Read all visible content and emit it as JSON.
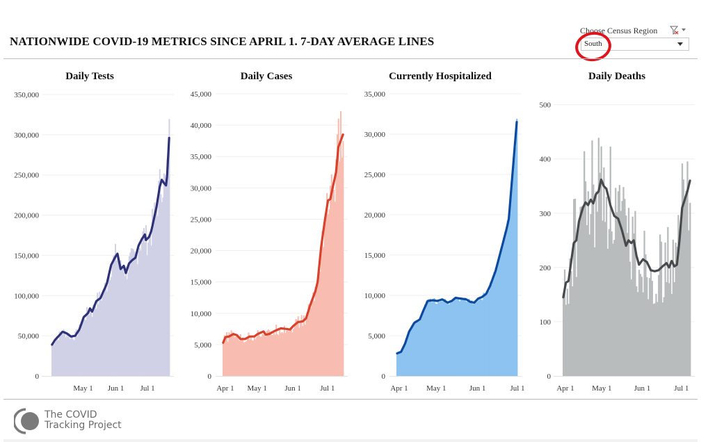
{
  "header": {
    "title": "NATIONWIDE COVID-19 METRICS SINCE APRIL 1. 7-DAY AVERAGE LINES"
  },
  "filter": {
    "label": "Choose Census Region",
    "selected": "South",
    "icon": "clear-filter-icon"
  },
  "footer": {
    "line1": "The COVID",
    "line2": "Tracking Project",
    "logo": "covid-tracking-logo"
  },
  "chart_data": [
    {
      "type": "bar",
      "title": "Daily Tests",
      "xlabel": "",
      "ylabel": "",
      "x_start": "Apr 1",
      "days": 111,
      "x_ticks": [
        {
          "label": "May 1",
          "day": 30
        },
        {
          "label": "Jun 1",
          "day": 61
        },
        {
          "label": "Jul 1",
          "day": 91
        }
      ],
      "y_ticks": [
        0,
        50000,
        100000,
        150000,
        200000,
        250000,
        300000,
        350000
      ],
      "y_tick_labels": [
        "0",
        "50,000",
        "100,000",
        "150,000",
        "200,000",
        "250,000",
        "300,000",
        "350,000"
      ],
      "ylim": [
        0,
        350000
      ],
      "grid": true,
      "bar_color": "#d0d1e6",
      "line_color": "#2e3178",
      "avg_keypoints": [
        [
          0,
          39000
        ],
        [
          3,
          45000
        ],
        [
          10,
          55000
        ],
        [
          14,
          53000
        ],
        [
          18,
          49000
        ],
        [
          22,
          50000
        ],
        [
          26,
          58000
        ],
        [
          30,
          73000
        ],
        [
          34,
          78000
        ],
        [
          36,
          84000
        ],
        [
          38,
          80000
        ],
        [
          42,
          93000
        ],
        [
          46,
          97000
        ],
        [
          52,
          115000
        ],
        [
          56,
          138000
        ],
        [
          60,
          148000
        ],
        [
          62,
          152000
        ],
        [
          65,
          133000
        ],
        [
          68,
          137000
        ],
        [
          70,
          128000
        ],
        [
          73,
          140000
        ],
        [
          76,
          144000
        ],
        [
          79,
          147000
        ],
        [
          82,
          162000
        ],
        [
          85,
          170000
        ],
        [
          88,
          176000
        ],
        [
          89,
          169000
        ],
        [
          92,
          173000
        ],
        [
          94,
          180000
        ],
        [
          96,
          192000
        ],
        [
          99,
          210000
        ],
        [
          102,
          235000
        ],
        [
          104,
          244000
        ],
        [
          106,
          240000
        ],
        [
          108,
          237000
        ],
        [
          109,
          248000
        ],
        [
          111,
          296000
        ]
      ],
      "daily_noise": 0.12
    },
    {
      "type": "bar",
      "title": "Daily Cases",
      "xlabel": "",
      "ylabel": "",
      "x_start": "Apr 1",
      "days": 111,
      "x_ticks": [
        {
          "label": "Apr 1",
          "day": 0
        },
        {
          "label": "May 1",
          "day": 30
        },
        {
          "label": "Jun 1",
          "day": 61
        },
        {
          "label": "Jul 1",
          "day": 91
        }
      ],
      "y_ticks": [
        0,
        5000,
        10000,
        15000,
        20000,
        25000,
        30000,
        35000,
        40000,
        45000
      ],
      "y_tick_labels": [
        "0",
        "5,000",
        "10,000",
        "15,000",
        "20,000",
        "25,000",
        "30,000",
        "35,000",
        "40,000",
        "45,000"
      ],
      "ylim": [
        0,
        45000
      ],
      "grid": true,
      "bar_color": "#f9bcb0",
      "line_color": "#d9412b",
      "avg_keypoints": [
        [
          0,
          5300
        ],
        [
          2,
          6200
        ],
        [
          5,
          6300
        ],
        [
          9,
          6700
        ],
        [
          12,
          6500
        ],
        [
          15,
          5900
        ],
        [
          19,
          5900
        ],
        [
          23,
          6300
        ],
        [
          27,
          6300
        ],
        [
          30,
          6700
        ],
        [
          35,
          7100
        ],
        [
          37,
          6600
        ],
        [
          40,
          6700
        ],
        [
          45,
          7200
        ],
        [
          50,
          7600
        ],
        [
          55,
          7500
        ],
        [
          58,
          7400
        ],
        [
          61,
          8000
        ],
        [
          65,
          8600
        ],
        [
          69,
          8700
        ],
        [
          72,
          9200
        ],
        [
          75,
          11000
        ],
        [
          80,
          13500
        ],
        [
          82,
          15000
        ],
        [
          85,
          20500
        ],
        [
          88,
          24500
        ],
        [
          91,
          28000
        ],
        [
          93,
          28200
        ],
        [
          95,
          30000
        ],
        [
          98,
          32500
        ],
        [
          100,
          36500
        ],
        [
          102,
          37500
        ],
        [
          104,
          38500
        ]
      ],
      "daily_noise": 0.13
    },
    {
      "type": "bar",
      "title": "Currently Hospitalized",
      "xlabel": "",
      "ylabel": "",
      "x_start": "Apr 1",
      "days": 111,
      "x_ticks": [
        {
          "label": "Apr 1",
          "day": 0
        },
        {
          "label": "May 1",
          "day": 30
        },
        {
          "label": "Jun 1",
          "day": 61
        },
        {
          "label": "Jul 1",
          "day": 91
        }
      ],
      "y_ticks": [
        0,
        5000,
        10000,
        15000,
        20000,
        25000,
        30000,
        35000
      ],
      "y_tick_labels": [
        "0",
        "5,000",
        "10,000",
        "15,000",
        "20,000",
        "25,000",
        "30,000",
        "35,000"
      ],
      "ylim": [
        0,
        35000
      ],
      "grid": true,
      "bar_color": "#8cc3f0",
      "line_color": "#0b4a9e",
      "avg_keypoints": [
        [
          0,
          2800
        ],
        [
          3,
          3000
        ],
        [
          6,
          4000
        ],
        [
          9,
          5500
        ],
        [
          13,
          6600
        ],
        [
          17,
          7000
        ],
        [
          20,
          8200
        ],
        [
          23,
          9300
        ],
        [
          27,
          9400
        ],
        [
          30,
          9300
        ],
        [
          34,
          9500
        ],
        [
          38,
          9100
        ],
        [
          41,
          9300
        ],
        [
          44,
          9700
        ],
        [
          48,
          9600
        ],
        [
          52,
          9500
        ],
        [
          55,
          9200
        ],
        [
          58,
          9100
        ],
        [
          61,
          9600
        ],
        [
          64,
          9800
        ],
        [
          67,
          10200
        ],
        [
          70,
          11200
        ],
        [
          74,
          13000
        ],
        [
          78,
          15500
        ],
        [
          82,
          18000
        ],
        [
          84,
          19500
        ],
        [
          86,
          23500
        ],
        [
          88,
          27500
        ],
        [
          90,
          31500
        ]
      ],
      "daily_noise": 0.04
    },
    {
      "type": "bar",
      "title": "Daily Deaths",
      "xlabel": "",
      "ylabel": "",
      "x_start": "Apr 1",
      "days": 111,
      "x_ticks": [
        {
          "label": "Apr 1",
          "day": 0
        },
        {
          "label": "May 1",
          "day": 30
        },
        {
          "label": "Jun 1",
          "day": 61
        },
        {
          "label": "Jul 1",
          "day": 91
        }
      ],
      "y_ticks": [
        0,
        100,
        200,
        300,
        400,
        500
      ],
      "y_tick_labels": [
        "0",
        "100",
        "200",
        "300",
        "400",
        "500"
      ],
      "ylim": [
        0,
        520
      ],
      "grid": true,
      "bar_color": "#b8bcbc",
      "line_color": "#464a4c",
      "avg_keypoints": [
        [
          0,
          145
        ],
        [
          2,
          172
        ],
        [
          4,
          175
        ],
        [
          6,
          210
        ],
        [
          8,
          245
        ],
        [
          10,
          250
        ],
        [
          12,
          285
        ],
        [
          15,
          310
        ],
        [
          17,
          320
        ],
        [
          19,
          315
        ],
        [
          21,
          325
        ],
        [
          23,
          318
        ],
        [
          25,
          335
        ],
        [
          27,
          340
        ],
        [
          29,
          362
        ],
        [
          31,
          350
        ],
        [
          33,
          345
        ],
        [
          36,
          315
        ],
        [
          39,
          295
        ],
        [
          42,
          290
        ],
        [
          45,
          268
        ],
        [
          48,
          240
        ],
        [
          50,
          250
        ],
        [
          52,
          245
        ],
        [
          54,
          250
        ],
        [
          56,
          222
        ],
        [
          58,
          205
        ],
        [
          61,
          215
        ],
        [
          64,
          210
        ],
        [
          67,
          195
        ],
        [
          70,
          193
        ],
        [
          73,
          195
        ],
        [
          76,
          202
        ],
        [
          79,
          208
        ],
        [
          81,
          200
        ],
        [
          83,
          212
        ],
        [
          85,
          202
        ],
        [
          87,
          205
        ],
        [
          89,
          250
        ],
        [
          91,
          310
        ],
        [
          93,
          325
        ],
        [
          95,
          340
        ],
        [
          97,
          360
        ]
      ],
      "daily_noise": 0.35
    }
  ]
}
